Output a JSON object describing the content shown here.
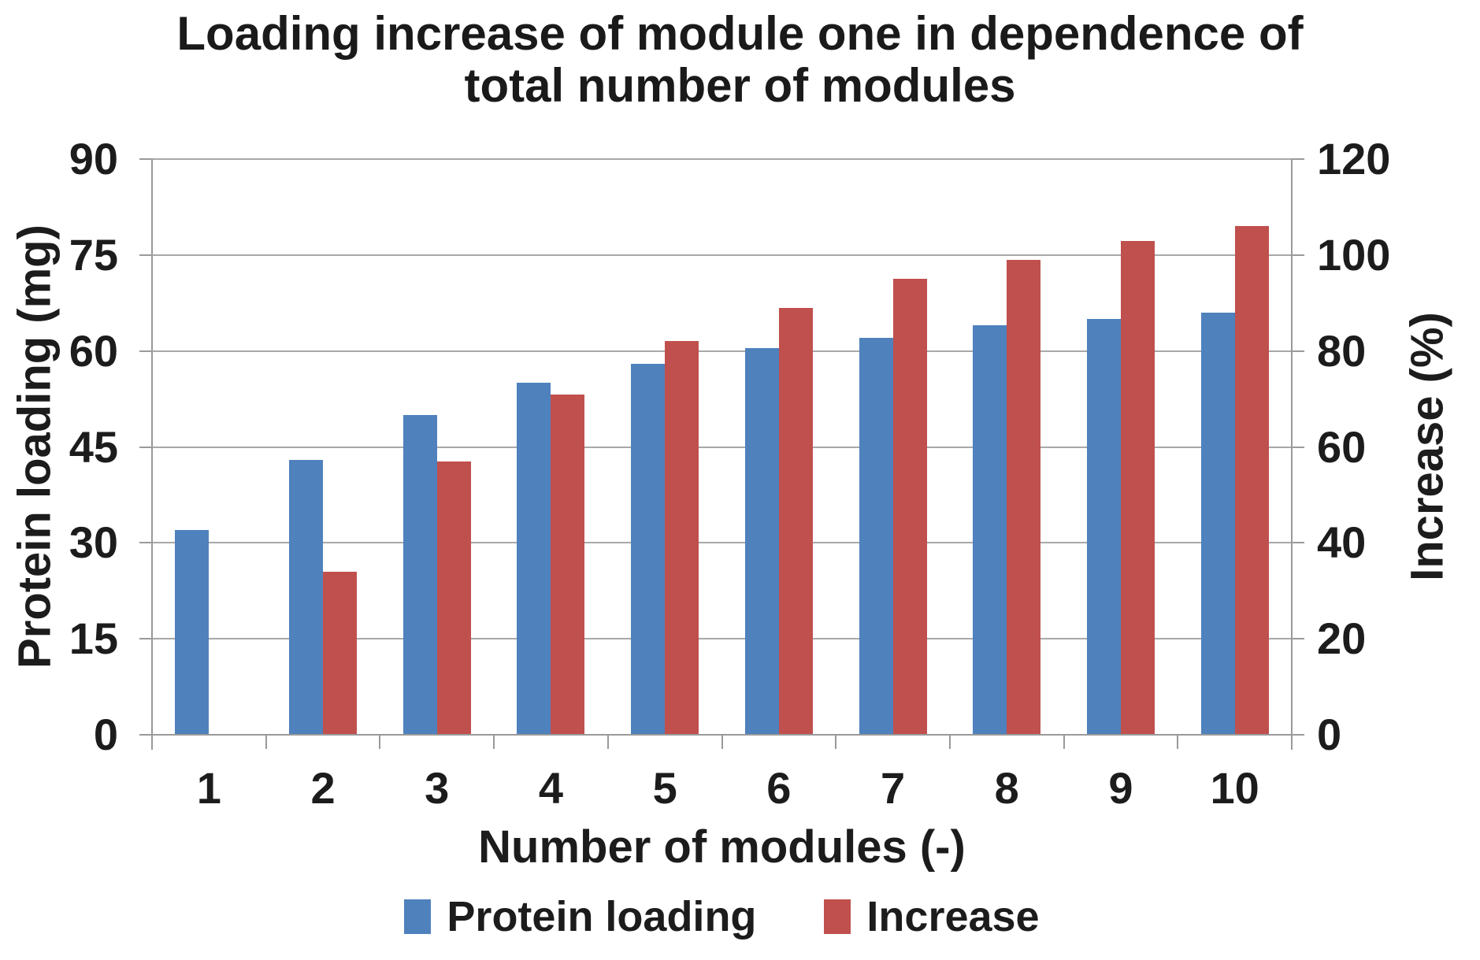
{
  "chart_data": {
    "type": "bar",
    "title": "Loading increase of module one in dependence of total number of modules",
    "title_lines": [
      "Loading increase of module one in dependence of",
      "total number of modules"
    ],
    "xlabel": "Number of modules (-)",
    "ylabel_left": "Protein loading (mg)",
    "ylabel_right": "Increase (%)",
    "categories": [
      "1",
      "2",
      "3",
      "4",
      "5",
      "6",
      "7",
      "8",
      "9",
      "10"
    ],
    "series": [
      {
        "name": "Protein loading",
        "axis": "left",
        "color": "#4f81bd",
        "values": [
          32,
          43,
          50,
          55,
          58,
          60.5,
          62,
          64,
          65,
          66
        ]
      },
      {
        "name": "Increase",
        "axis": "right",
        "color": "#c0504d",
        "values": [
          null,
          34,
          57,
          71,
          82,
          89,
          95,
          99,
          103,
          106
        ]
      }
    ],
    "left_axis": {
      "min": 0,
      "max": 90,
      "step": 15,
      "ticks": [
        0,
        15,
        30,
        45,
        60,
        75,
        90
      ]
    },
    "right_axis": {
      "min": 0,
      "max": 120,
      "step": 20,
      "ticks": [
        0,
        20,
        40,
        60,
        80,
        100,
        120
      ]
    },
    "grid": true,
    "legend_position": "bottom"
  },
  "colors": {
    "series_blue": "#4f81bd",
    "series_red": "#c0504d",
    "gridline": "#a8a8a8",
    "axis_line": "#9a9a9a",
    "text": "#1a1a1a",
    "background": "#ffffff"
  }
}
